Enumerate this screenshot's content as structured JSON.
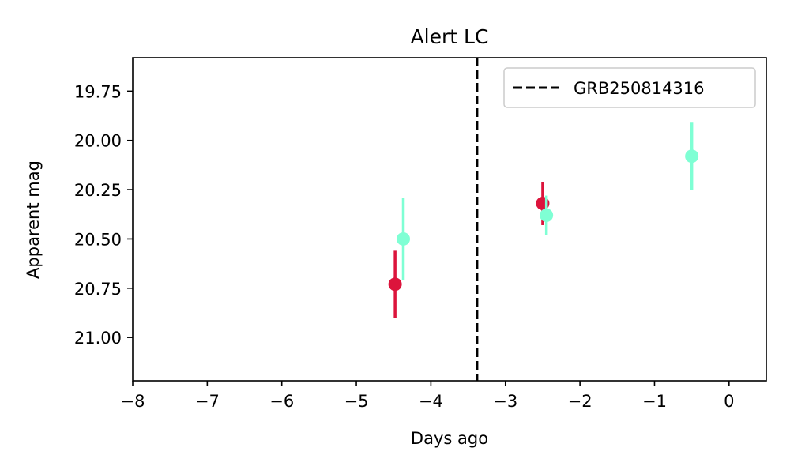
{
  "chart_data": {
    "type": "scatter",
    "title": "Alert LC",
    "xlabel": "Days ago",
    "ylabel": "Apparent mag",
    "xlim": [
      -8,
      0.5
    ],
    "ylim": [
      21.22,
      19.58
    ],
    "y_inverted": true,
    "xticks": [
      -8,
      -7,
      -6,
      -5,
      -4,
      -3,
      -2,
      -1,
      0
    ],
    "xtick_labels": [
      "−8",
      "−7",
      "−6",
      "−5",
      "−4",
      "−3",
      "−2",
      "−1",
      "0"
    ],
    "yticks": [
      19.75,
      20.0,
      20.25,
      20.5,
      20.75,
      21.0
    ],
    "ytick_labels": [
      "19.75",
      "20.00",
      "20.25",
      "20.50",
      "20.75",
      "21.00"
    ],
    "grid": false,
    "legend": {
      "position": "top-right",
      "entries": [
        {
          "label": "GRB250814316",
          "style": "dashed-line",
          "color": "#000000"
        }
      ]
    },
    "vlines": [
      {
        "x": -3.38,
        "color": "#000000",
        "style": "dashed",
        "label": "GRB250814316"
      }
    ],
    "series": [
      {
        "color": "#dc143c",
        "points": [
          {
            "x": -4.48,
            "y": 20.73,
            "yerr": 0.17
          },
          {
            "x": -2.5,
            "y": 20.32,
            "yerr": 0.11
          }
        ]
      },
      {
        "color": "#7fffd4",
        "points": [
          {
            "x": -4.37,
            "y": 20.5,
            "yerr": 0.21
          },
          {
            "x": -2.45,
            "y": 20.38,
            "yerr": 0.1
          },
          {
            "x": -0.5,
            "y": 20.08,
            "yerr": 0.17
          }
        ]
      }
    ]
  }
}
